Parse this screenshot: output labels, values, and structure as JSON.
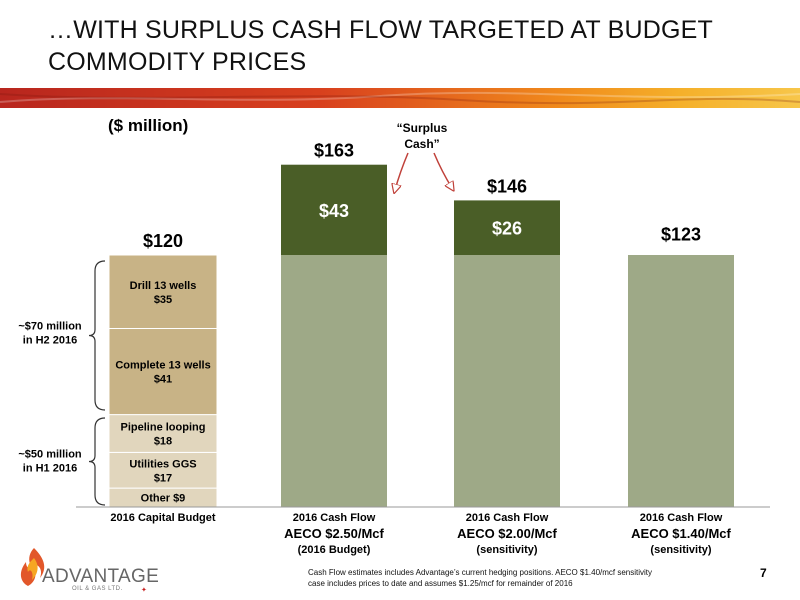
{
  "header": {
    "title": "…WITH SURPLUS CASH FLOW TARGETED AT BUDGET COMMODITY PRICES",
    "unit_label": "($ million)"
  },
  "colors": {
    "budget_segment": "#c8b386",
    "budget_segment_light": "#e1d6bd",
    "base_cash_flow": "#9ea987",
    "surplus_cash": "#4a5e27",
    "arrow": "#c0413a"
  },
  "chart_data": {
    "type": "bar",
    "categories": [
      "2016 Capital Budget",
      "2016 Cash Flow AECO $2.50/Mcf (2016 Budget)",
      "2016 Cash Flow AECO $2.00/Mcf (sensitivity)",
      "2016 Cash Flow AECO $1.40/Mcf (sensitivity)"
    ],
    "category_labels": [
      {
        "line1": "2016 Capital Budget",
        "line2": "",
        "line3": ""
      },
      {
        "line1": "2016 Cash Flow",
        "line2": "AECO $2.50/Mcf",
        "line3": "(2016 Budget)"
      },
      {
        "line1": "2016 Cash Flow",
        "line2": "AECO $2.00/Mcf",
        "line3": "(sensitivity)"
      },
      {
        "line1": "2016 Cash Flow",
        "line2": "AECO $1.40/Mcf",
        "line3": "(sensitivity)"
      }
    ],
    "ylim": [
      0,
      170
    ],
    "totals": [
      120,
      163,
      146,
      123
    ],
    "total_labels": [
      "$120",
      "$163",
      "$146",
      "$123"
    ],
    "budget_components": [
      {
        "label": "Other $9",
        "value": 9
      },
      {
        "label": "Utilities GGS",
        "sublabel": "$17",
        "value": 17
      },
      {
        "label": "Pipeline looping",
        "sublabel": "$18",
        "value": 18
      },
      {
        "label": "Complete 13 wells",
        "sublabel": "$41",
        "value": 41
      },
      {
        "label": "Drill 13 wells",
        "sublabel": "$35",
        "value": 35
      }
    ],
    "cash_flow_base": 120,
    "surplus": [
      {
        "category_index": 1,
        "value": 43,
        "label": "$43"
      },
      {
        "category_index": 2,
        "value": 26,
        "label": "$26"
      }
    ],
    "annotations": {
      "surplus_label_line1": "“Surplus",
      "surplus_label_line2": "Cash”",
      "h2_line1": "~$70 million",
      "h2_line2": "in H2 2016",
      "h1_line1": "~$50 million",
      "h1_line2": "in H1 2016"
    }
  },
  "footer": {
    "footnote_line1": "Cash Flow estimates includes Advantage’s current hedging positions.  AECO $1.40/mcf sensitivity",
    "footnote_line2": "case includes prices to date and assumes $1.25/mcf for remainder of 2016",
    "page_number": "7",
    "logo_text": "ADVANTAGE",
    "logo_subtext": "OIL & GAS LTD."
  }
}
